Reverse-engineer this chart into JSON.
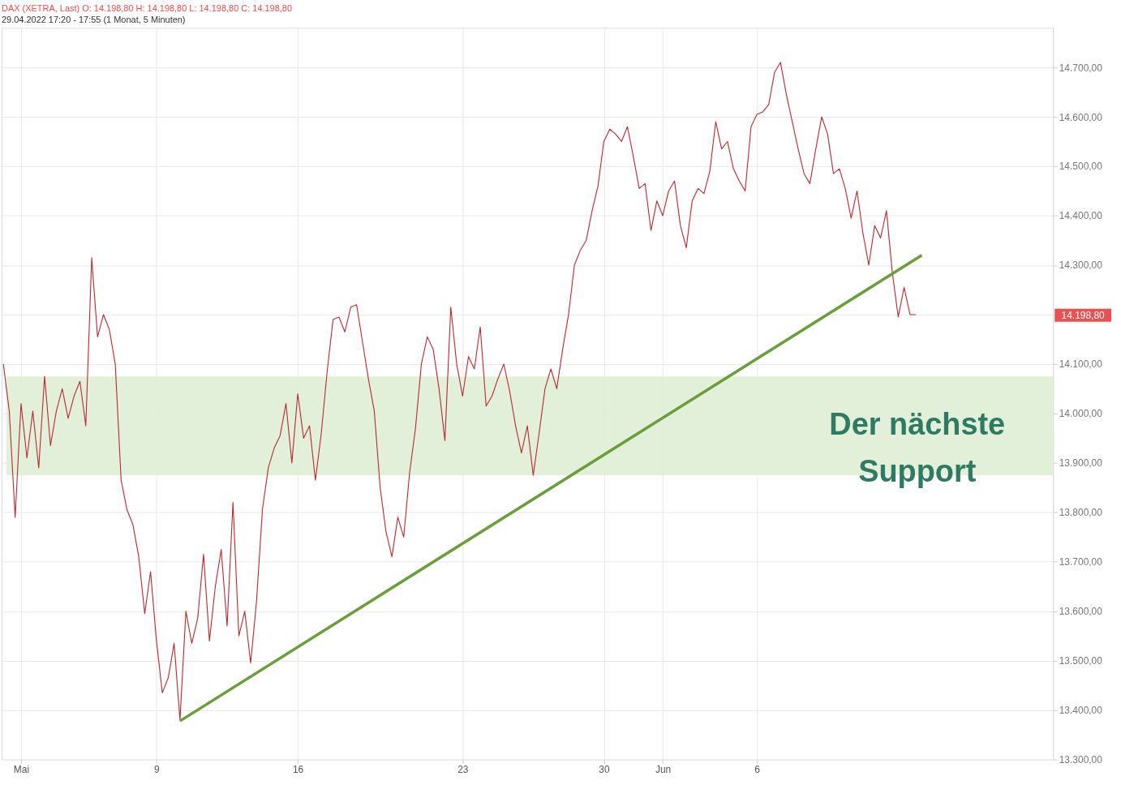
{
  "chart_data": {
    "type": "line",
    "title": "DAX (XETRA, Last)  O: 14.198,80  H: 14.198,80  L: 14.198,80  C: 14.198,80",
    "subtitle": "29.04.2022 17:20 - 17:55  (1 Monat, 5 Minuten)",
    "categories": [
      null,
      null,
      null,
      "Mai",
      null,
      null,
      null,
      null,
      null,
      null,
      null,
      null,
      null,
      null,
      null,
      null,
      null,
      null,
      null,
      null,
      null,
      null,
      null,
      null,
      null,
      null,
      "9",
      null,
      null,
      null,
      null,
      null,
      null,
      null,
      null,
      null,
      null,
      null,
      null,
      null,
      null,
      null,
      null,
      null,
      null,
      null,
      null,
      null,
      null,
      null,
      "16",
      null,
      null,
      null,
      null,
      null,
      null,
      null,
      null,
      null,
      null,
      null,
      null,
      null,
      null,
      null,
      null,
      null,
      null,
      null,
      null,
      null,
      null,
      null,
      null,
      null,
      null,
      null,
      "23",
      null,
      null,
      null,
      null,
      null,
      null,
      null,
      null,
      null,
      null,
      null,
      null,
      null,
      null,
      null,
      null,
      null,
      null,
      null,
      null,
      null,
      null,
      null,
      "30",
      null,
      null,
      null,
      null,
      null,
      null,
      null,
      null,
      null,
      "Jun",
      null,
      null,
      null,
      null,
      null,
      null,
      null,
      null,
      null,
      null,
      null,
      null,
      null,
      null,
      null,
      "6",
      null,
      null,
      null,
      null,
      null,
      null,
      null,
      null,
      null,
      null,
      null,
      null,
      null,
      null,
      null,
      null,
      null,
      null,
      null,
      null,
      null,
      null,
      null,
      null,
      null,
      null,
      null,
      null,
      null,
      null,
      null,
      null,
      null,
      null,
      null,
      null,
      null,
      null,
      null,
      null,
      null,
      null,
      null,
      null,
      null,
      null,
      null,
      null,
      null,
      null
    ],
    "ylim": [
      13300,
      14780
    ],
    "yticks": [
      {
        "value": 13300,
        "label": "13.300,00"
      },
      {
        "value": 13400,
        "label": "13.400,00"
      },
      {
        "value": 13500,
        "label": "13.500,00"
      },
      {
        "value": 13600,
        "label": "13.600,00"
      },
      {
        "value": 13700,
        "label": "13.700,00"
      },
      {
        "value": 13800,
        "label": "13.800,00"
      },
      {
        "value": 13900,
        "label": "13.900,00"
      },
      {
        "value": 14000,
        "label": "14.000,00"
      },
      {
        "value": 14100,
        "label": "14.100,00"
      },
      {
        "value": 14200,
        "label": null
      },
      {
        "value": 14300,
        "label": "14.300,00"
      },
      {
        "value": 14400,
        "label": "14.400,00"
      },
      {
        "value": 14500,
        "label": "14.500,00"
      },
      {
        "value": 14600,
        "label": "14.600,00"
      },
      {
        "value": 14700,
        "label": "14.700,00"
      }
    ],
    "grid": true,
    "line_style": "solid",
    "series": [
      {
        "type": "line",
        "color": "#b8292f",
        "values": [
          14100,
          14005,
          13790,
          14020,
          13910,
          14005,
          13890,
          14075,
          13935,
          14005,
          14050,
          13990,
          14035,
          14065,
          13975,
          14315,
          14155,
          14200,
          14170,
          14100,
          13865,
          13805,
          13775,
          13710,
          13595,
          13680,
          13540,
          13435,
          13465,
          13535,
          13380,
          13600,
          13535,
          13585,
          13715,
          13540,
          13650,
          13725,
          13570,
          13820,
          13550,
          13600,
          13495,
          13620,
          13805,
          13890,
          13930,
          13955,
          14020,
          13900,
          14040,
          13950,
          13975,
          13865,
          13960,
          14085,
          14190,
          14195,
          14165,
          14215,
          14220,
          14145,
          14070,
          14005,
          13850,
          13760,
          13710,
          13790,
          13750,
          13880,
          13970,
          14100,
          14155,
          14130,
          14050,
          13945,
          14215,
          14100,
          14035,
          14115,
          14090,
          14175,
          14015,
          14035,
          14070,
          14100,
          14045,
          13975,
          13920,
          13975,
          13875,
          13960,
          14050,
          14090,
          14050,
          14130,
          14200,
          14300,
          14330,
          14350,
          14410,
          14460,
          14550,
          14575,
          14565,
          14550,
          14580,
          14520,
          14455,
          14465,
          14370,
          14430,
          14400,
          14450,
          14470,
          14380,
          14335,
          14430,
          14455,
          14445,
          14490,
          14590,
          14535,
          14550,
          14495,
          14470,
          14450,
          14580,
          14605,
          14610,
          14625,
          14690,
          14710,
          14645,
          14590,
          14535,
          14485,
          14465,
          14535,
          14600,
          14565,
          14485,
          14495,
          14455,
          14395,
          14450,
          14365,
          14300,
          14380,
          14355,
          14410,
          14285,
          14195,
          14255,
          14200,
          14200,
          null,
          null,
          null,
          null,
          null,
          null,
          null,
          null,
          null,
          null,
          null,
          null,
          null,
          null,
          null,
          null,
          null,
          null,
          null,
          null,
          null,
          null,
          null
        ]
      },
      {
        "type": "line",
        "color": "#6a9e3a",
        "values": [
          null,
          null,
          null,
          null,
          null,
          null,
          null,
          null,
          null,
          null,
          null,
          null,
          null,
          null,
          null,
          null,
          null,
          null,
          null,
          null,
          null,
          null,
          null,
          null,
          null,
          null,
          null,
          null,
          null,
          null,
          13378,
          null,
          null,
          null,
          null,
          null,
          null,
          null,
          null,
          null,
          null,
          null,
          null,
          null,
          null,
          null,
          null,
          null,
          null,
          null,
          null,
          null,
          null,
          null,
          null,
          null,
          null,
          null,
          null,
          null,
          null,
          null,
          null,
          null,
          null,
          null,
          null,
          null,
          null,
          null,
          null,
          null,
          null,
          null,
          null,
          null,
          null,
          null,
          null,
          null,
          null,
          null,
          null,
          null,
          null,
          null,
          null,
          null,
          null,
          null,
          null,
          null,
          null,
          null,
          null,
          null,
          null,
          null,
          null,
          null,
          null,
          null,
          null,
          null,
          null,
          null,
          null,
          null,
          null,
          null,
          null,
          null,
          null,
          null,
          null,
          null,
          null,
          null,
          null,
          null,
          null,
          null,
          null,
          null,
          null,
          null,
          null,
          null,
          null,
          null,
          null,
          null,
          null,
          null,
          null,
          null,
          null,
          null,
          null,
          null,
          null,
          null,
          null,
          null,
          null,
          null,
          null,
          null,
          null,
          null,
          null,
          null,
          null,
          null,
          null,
          null,
          14320,
          null,
          null,
          null,
          null,
          null,
          null,
          null,
          null,
          null,
          null,
          null,
          null,
          null,
          null,
          null,
          null,
          null,
          null,
          null,
          null,
          null,
          null
        ]
      }
    ],
    "bands": [
      {
        "axis": "y",
        "from": 13875,
        "to": 14075,
        "label": "Der nächste Support",
        "color": "#dfeed6"
      }
    ],
    "ref_lines": [
      {
        "axis": "y",
        "value": 14198.8,
        "label": "14.198,80",
        "color": "#e8514f"
      }
    ]
  }
}
